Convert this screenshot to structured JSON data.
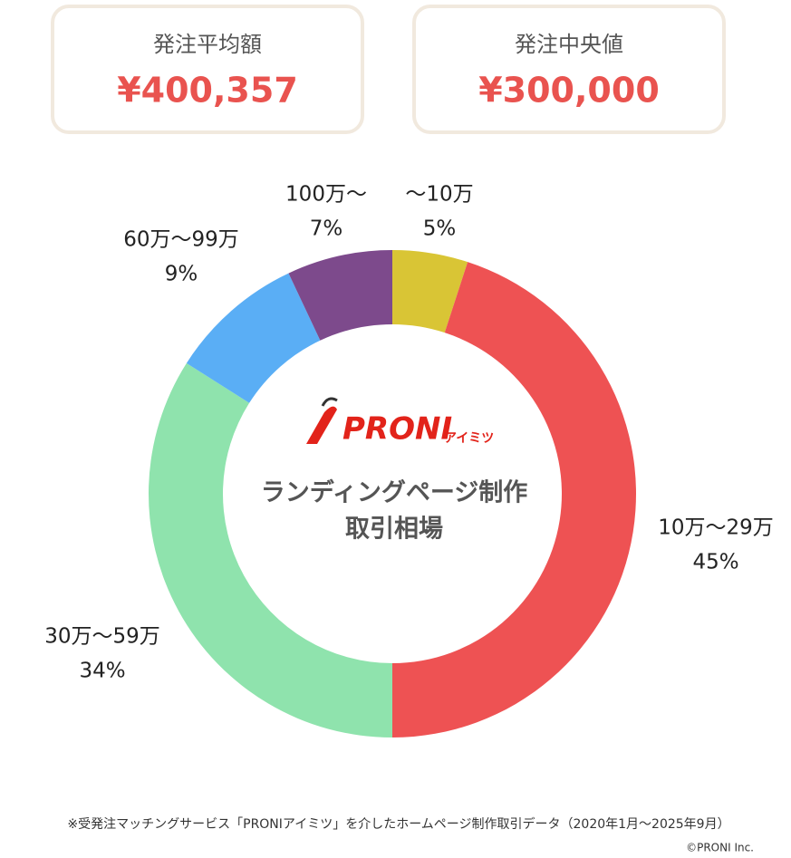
{
  "stats": [
    {
      "label": "発注平均額",
      "value": "¥400,357"
    },
    {
      "label": "発注中央値",
      "value": "¥300,000"
    }
  ],
  "chart_data": {
    "type": "pie",
    "donut": true,
    "categories": [
      "〜10万",
      "10万〜29万",
      "30万〜59万",
      "60万〜99万",
      "100万〜"
    ],
    "values": [
      5,
      45,
      34,
      9,
      7
    ],
    "value_labels": [
      "5%",
      "45%",
      "34%",
      "9%",
      "7%"
    ],
    "colors": [
      "#d9c535",
      "#ee5253",
      "#8fe3ad",
      "#5aaef5",
      "#7d4a8c"
    ],
    "logo": {
      "brand": "PRONI",
      "sub": "アイミツ"
    },
    "center_title": [
      "ランディングページ制作",
      "取引相場"
    ]
  },
  "footer": {
    "note": "※受発注マッチングサービス「PRONIアイミツ」を介したホームページ制作取引データ（2020年1月〜2025年9月）",
    "copyright": "©PRONI Inc."
  }
}
